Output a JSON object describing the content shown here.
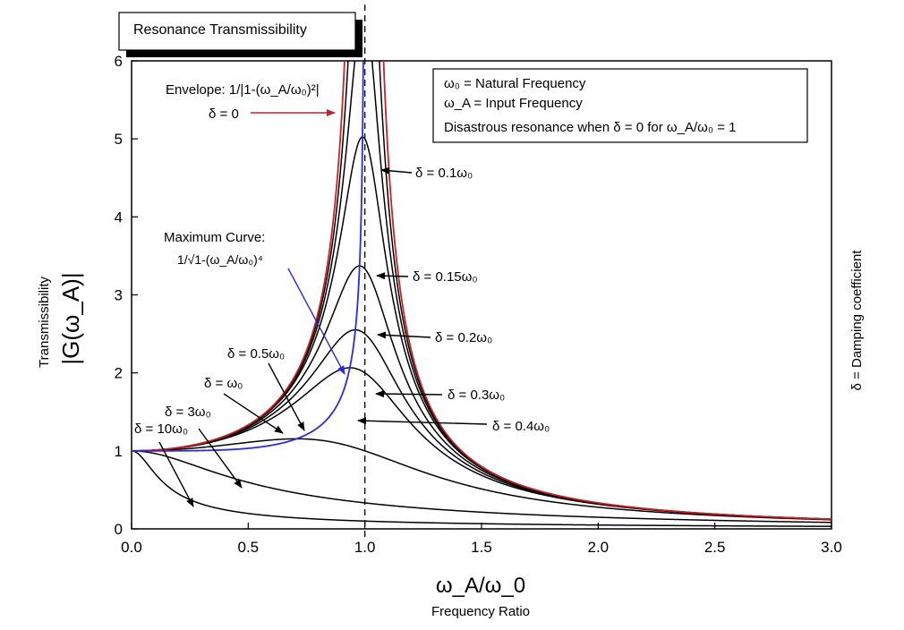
{
  "chart_data": {
    "type": "line",
    "title": "Resonance Transmissibility",
    "xlabel": "ω_A/ω_0",
    "xlabel_sub": "Frequency Ratio",
    "ylabel": "|G(ω_A)|",
    "ylabel_sub": "Transmissibility",
    "side_label": "δ = Damping coefficient",
    "xlim": [
      0,
      3.0
    ],
    "ylim": [
      0,
      6
    ],
    "xticks": [
      "0.0",
      "0.5",
      "1.0",
      "1.5",
      "2.0",
      "2.5",
      "3.0"
    ],
    "yticks": [
      "0",
      "1",
      "2",
      "3",
      "4",
      "5",
      "6"
    ],
    "grid": false,
    "reference_line_x": 1.0,
    "info_box": [
      "ω₀ = Natural Frequency",
      "ω_A = Input Frequency",
      "Disastrous resonance when δ = 0 for ω_A/ω₀ = 1"
    ],
    "envelope": {
      "label_line1": "Envelope: 1/|1-(ω_A/ω₀)²|",
      "label_line2": "δ = 0",
      "color": "#cc1f2a"
    },
    "maximum_curve": {
      "label_line1": "Maximum Curve:",
      "label_line2": "1/√1-(ω_A/ω₀)⁴",
      "color": "#2a2ae0"
    },
    "series": [
      {
        "name": "δ = 0.1ω₀",
        "delta": 0.1,
        "peak": 5.02
      },
      {
        "name": "δ = 0.15ω₀",
        "delta": 0.15,
        "peak": 3.37
      },
      {
        "name": "δ = 0.2ω₀",
        "delta": 0.2,
        "peak": 2.55
      },
      {
        "name": "δ = 0.3ω₀",
        "delta": 0.3,
        "peak": 1.75
      },
      {
        "name": "δ = 0.4ω₀",
        "delta": 0.4,
        "peak": 1.37
      },
      {
        "name": "δ = 0.5ω₀",
        "delta": 0.5,
        "peak": 1.16
      },
      {
        "name": "δ = ω₀",
        "delta": 1.0,
        "peak": 1.0
      },
      {
        "name": "δ = 3ω₀",
        "delta": 3.0,
        "peak": 1.0
      },
      {
        "name": "δ = 10ω₀",
        "delta": 10.0,
        "peak": 1.0
      }
    ],
    "colors": {
      "curves": "#000000",
      "envelope": "#cc1f2a",
      "maximum": "#2a2ae0"
    }
  }
}
